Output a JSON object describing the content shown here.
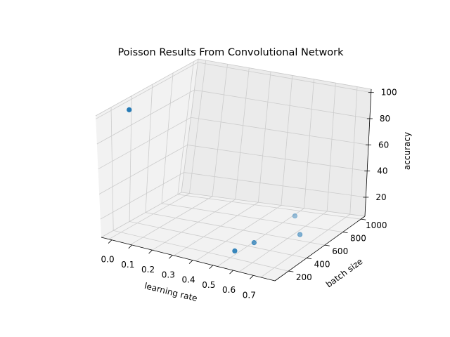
{
  "chart_data": {
    "type": "scatter",
    "title": "Poisson Results From Convolutional Network",
    "xlabel": "learning rate",
    "ylabel": "batch size",
    "zlabel": "accuracy",
    "x_ticks": [
      "0.0",
      "0.1",
      "0.2",
      "0.3",
      "0.4",
      "0.5",
      "0.6",
      "0.7"
    ],
    "y_ticks": [
      "200",
      "400",
      "600",
      "800",
      "1000"
    ],
    "z_ticks": [
      "20",
      "40",
      "60",
      "80",
      "100"
    ],
    "grid": true,
    "marker_color": "#1f77b4",
    "points": [
      {
        "x": 0.001,
        "y": 100,
        "z": 98
      },
      {
        "x": 0.5,
        "y": 256,
        "z": 10
      },
      {
        "x": 0.5,
        "y": 500,
        "z": 8
      },
      {
        "x": 0.6,
        "y": 800,
        "z": 8
      },
      {
        "x": 0.5,
        "y": 1000,
        "z": 11
      }
    ]
  }
}
